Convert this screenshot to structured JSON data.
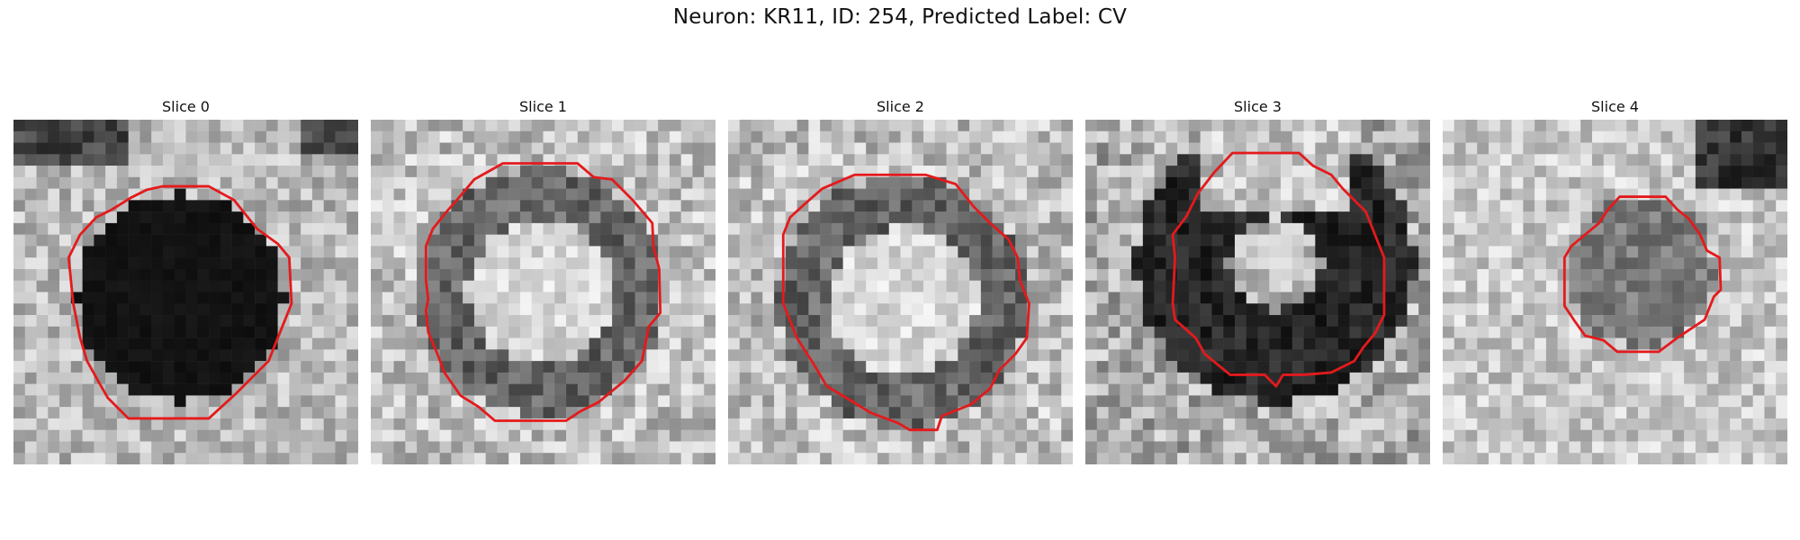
{
  "title": "Neuron: KR11, ID: 254, Predicted Label: CV",
  "contour_color": "#e41a1c",
  "slices": [
    {
      "label": "Slice 0",
      "style": "dark"
    },
    {
      "label": "Slice 1",
      "style": "bright"
    },
    {
      "label": "Slice 2",
      "style": "bright"
    },
    {
      "label": "Slice 3",
      "style": "ring"
    },
    {
      "label": "Slice 4",
      "style": "mid"
    }
  ]
}
